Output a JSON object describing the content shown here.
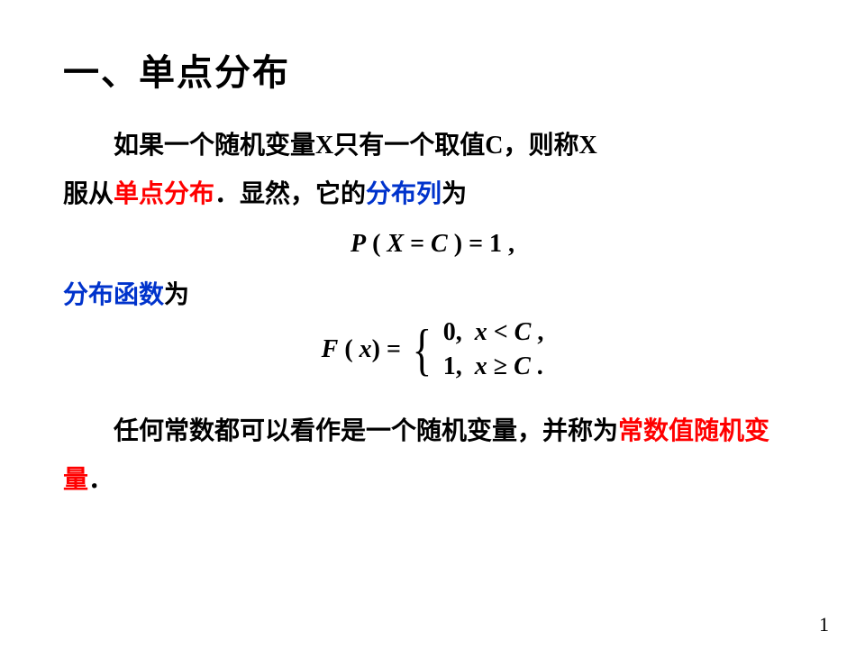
{
  "colors": {
    "text": "#000000",
    "red": "#ff0000",
    "blue": "#0033cc",
    "background": "#ffffff"
  },
  "fonts": {
    "cjk": "SimHei / Heiti, bold",
    "latin": "Times New Roman, italic"
  },
  "title": "一、单点分布",
  "p1_a": "如果一个随机变量",
  "p1_X1": "X",
  "p1_b": "只有一个取值",
  "p1_C": "C",
  "p1_c": "，则称",
  "p1_X2": "X",
  "p1_d": "服从",
  "p1_red": "单点分布",
  "p1_e": "．显然，它的",
  "p1_blue": "分布列",
  "p1_f": "为",
  "eq1": {
    "P": "P",
    "lp": "(",
    "X": "X",
    "eq": " = ",
    "C": "C",
    "rp": ")",
    "eq2": " = ",
    "one": "1",
    "comma": " ,"
  },
  "dist_label_a": "分布函数",
  "dist_label_b": "为",
  "eq2": {
    "F": "F",
    "lp": "(",
    "x": "x",
    "rp": ")",
    "eq": " = ",
    "case1": "0,  x < C ,",
    "case2": "1,  x ≥ C ."
  },
  "p2_a": "任何常数都可以看作是一个随机变量，并称为",
  "p2_red": "常数值随机变量",
  "p2_b": "．",
  "pagenum": "1"
}
